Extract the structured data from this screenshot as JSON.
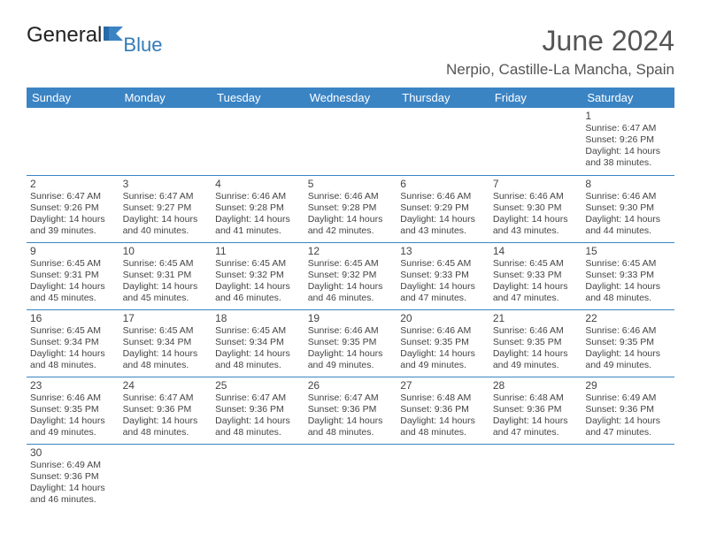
{
  "brand": {
    "general": "General",
    "blue": "Blue"
  },
  "header": {
    "month_title": "June 2024",
    "location": "Nerpio, Castille-La Mancha, Spain"
  },
  "colors": {
    "header_bg": "#3b84c4",
    "header_text": "#ffffff",
    "cell_border": "#3b84c4",
    "text": "#444444",
    "title_text": "#555555",
    "brand_blue": "#337ab7"
  },
  "weekdays": [
    "Sunday",
    "Monday",
    "Tuesday",
    "Wednesday",
    "Thursday",
    "Friday",
    "Saturday"
  ],
  "weeks": [
    [
      null,
      null,
      null,
      null,
      null,
      null,
      {
        "n": "1",
        "sr": "Sunrise: 6:47 AM",
        "ss": "Sunset: 9:26 PM",
        "d1": "Daylight: 14 hours",
        "d2": "and 38 minutes."
      }
    ],
    [
      {
        "n": "2",
        "sr": "Sunrise: 6:47 AM",
        "ss": "Sunset: 9:26 PM",
        "d1": "Daylight: 14 hours",
        "d2": "and 39 minutes."
      },
      {
        "n": "3",
        "sr": "Sunrise: 6:47 AM",
        "ss": "Sunset: 9:27 PM",
        "d1": "Daylight: 14 hours",
        "d2": "and 40 minutes."
      },
      {
        "n": "4",
        "sr": "Sunrise: 6:46 AM",
        "ss": "Sunset: 9:28 PM",
        "d1": "Daylight: 14 hours",
        "d2": "and 41 minutes."
      },
      {
        "n": "5",
        "sr": "Sunrise: 6:46 AM",
        "ss": "Sunset: 9:28 PM",
        "d1": "Daylight: 14 hours",
        "d2": "and 42 minutes."
      },
      {
        "n": "6",
        "sr": "Sunrise: 6:46 AM",
        "ss": "Sunset: 9:29 PM",
        "d1": "Daylight: 14 hours",
        "d2": "and 43 minutes."
      },
      {
        "n": "7",
        "sr": "Sunrise: 6:46 AM",
        "ss": "Sunset: 9:30 PM",
        "d1": "Daylight: 14 hours",
        "d2": "and 43 minutes."
      },
      {
        "n": "8",
        "sr": "Sunrise: 6:46 AM",
        "ss": "Sunset: 9:30 PM",
        "d1": "Daylight: 14 hours",
        "d2": "and 44 minutes."
      }
    ],
    [
      {
        "n": "9",
        "sr": "Sunrise: 6:45 AM",
        "ss": "Sunset: 9:31 PM",
        "d1": "Daylight: 14 hours",
        "d2": "and 45 minutes."
      },
      {
        "n": "10",
        "sr": "Sunrise: 6:45 AM",
        "ss": "Sunset: 9:31 PM",
        "d1": "Daylight: 14 hours",
        "d2": "and 45 minutes."
      },
      {
        "n": "11",
        "sr": "Sunrise: 6:45 AM",
        "ss": "Sunset: 9:32 PM",
        "d1": "Daylight: 14 hours",
        "d2": "and 46 minutes."
      },
      {
        "n": "12",
        "sr": "Sunrise: 6:45 AM",
        "ss": "Sunset: 9:32 PM",
        "d1": "Daylight: 14 hours",
        "d2": "and 46 minutes."
      },
      {
        "n": "13",
        "sr": "Sunrise: 6:45 AM",
        "ss": "Sunset: 9:33 PM",
        "d1": "Daylight: 14 hours",
        "d2": "and 47 minutes."
      },
      {
        "n": "14",
        "sr": "Sunrise: 6:45 AM",
        "ss": "Sunset: 9:33 PM",
        "d1": "Daylight: 14 hours",
        "d2": "and 47 minutes."
      },
      {
        "n": "15",
        "sr": "Sunrise: 6:45 AM",
        "ss": "Sunset: 9:33 PM",
        "d1": "Daylight: 14 hours",
        "d2": "and 48 minutes."
      }
    ],
    [
      {
        "n": "16",
        "sr": "Sunrise: 6:45 AM",
        "ss": "Sunset: 9:34 PM",
        "d1": "Daylight: 14 hours",
        "d2": "and 48 minutes."
      },
      {
        "n": "17",
        "sr": "Sunrise: 6:45 AM",
        "ss": "Sunset: 9:34 PM",
        "d1": "Daylight: 14 hours",
        "d2": "and 48 minutes."
      },
      {
        "n": "18",
        "sr": "Sunrise: 6:45 AM",
        "ss": "Sunset: 9:34 PM",
        "d1": "Daylight: 14 hours",
        "d2": "and 48 minutes."
      },
      {
        "n": "19",
        "sr": "Sunrise: 6:46 AM",
        "ss": "Sunset: 9:35 PM",
        "d1": "Daylight: 14 hours",
        "d2": "and 49 minutes."
      },
      {
        "n": "20",
        "sr": "Sunrise: 6:46 AM",
        "ss": "Sunset: 9:35 PM",
        "d1": "Daylight: 14 hours",
        "d2": "and 49 minutes."
      },
      {
        "n": "21",
        "sr": "Sunrise: 6:46 AM",
        "ss": "Sunset: 9:35 PM",
        "d1": "Daylight: 14 hours",
        "d2": "and 49 minutes."
      },
      {
        "n": "22",
        "sr": "Sunrise: 6:46 AM",
        "ss": "Sunset: 9:35 PM",
        "d1": "Daylight: 14 hours",
        "d2": "and 49 minutes."
      }
    ],
    [
      {
        "n": "23",
        "sr": "Sunrise: 6:46 AM",
        "ss": "Sunset: 9:35 PM",
        "d1": "Daylight: 14 hours",
        "d2": "and 49 minutes."
      },
      {
        "n": "24",
        "sr": "Sunrise: 6:47 AM",
        "ss": "Sunset: 9:36 PM",
        "d1": "Daylight: 14 hours",
        "d2": "and 48 minutes."
      },
      {
        "n": "25",
        "sr": "Sunrise: 6:47 AM",
        "ss": "Sunset: 9:36 PM",
        "d1": "Daylight: 14 hours",
        "d2": "and 48 minutes."
      },
      {
        "n": "26",
        "sr": "Sunrise: 6:47 AM",
        "ss": "Sunset: 9:36 PM",
        "d1": "Daylight: 14 hours",
        "d2": "and 48 minutes."
      },
      {
        "n": "27",
        "sr": "Sunrise: 6:48 AM",
        "ss": "Sunset: 9:36 PM",
        "d1": "Daylight: 14 hours",
        "d2": "and 48 minutes."
      },
      {
        "n": "28",
        "sr": "Sunrise: 6:48 AM",
        "ss": "Sunset: 9:36 PM",
        "d1": "Daylight: 14 hours",
        "d2": "and 47 minutes."
      },
      {
        "n": "29",
        "sr": "Sunrise: 6:49 AM",
        "ss": "Sunset: 9:36 PM",
        "d1": "Daylight: 14 hours",
        "d2": "and 47 minutes."
      }
    ],
    [
      {
        "n": "30",
        "sr": "Sunrise: 6:49 AM",
        "ss": "Sunset: 9:36 PM",
        "d1": "Daylight: 14 hours",
        "d2": "and 46 minutes."
      },
      null,
      null,
      null,
      null,
      null,
      null
    ]
  ]
}
